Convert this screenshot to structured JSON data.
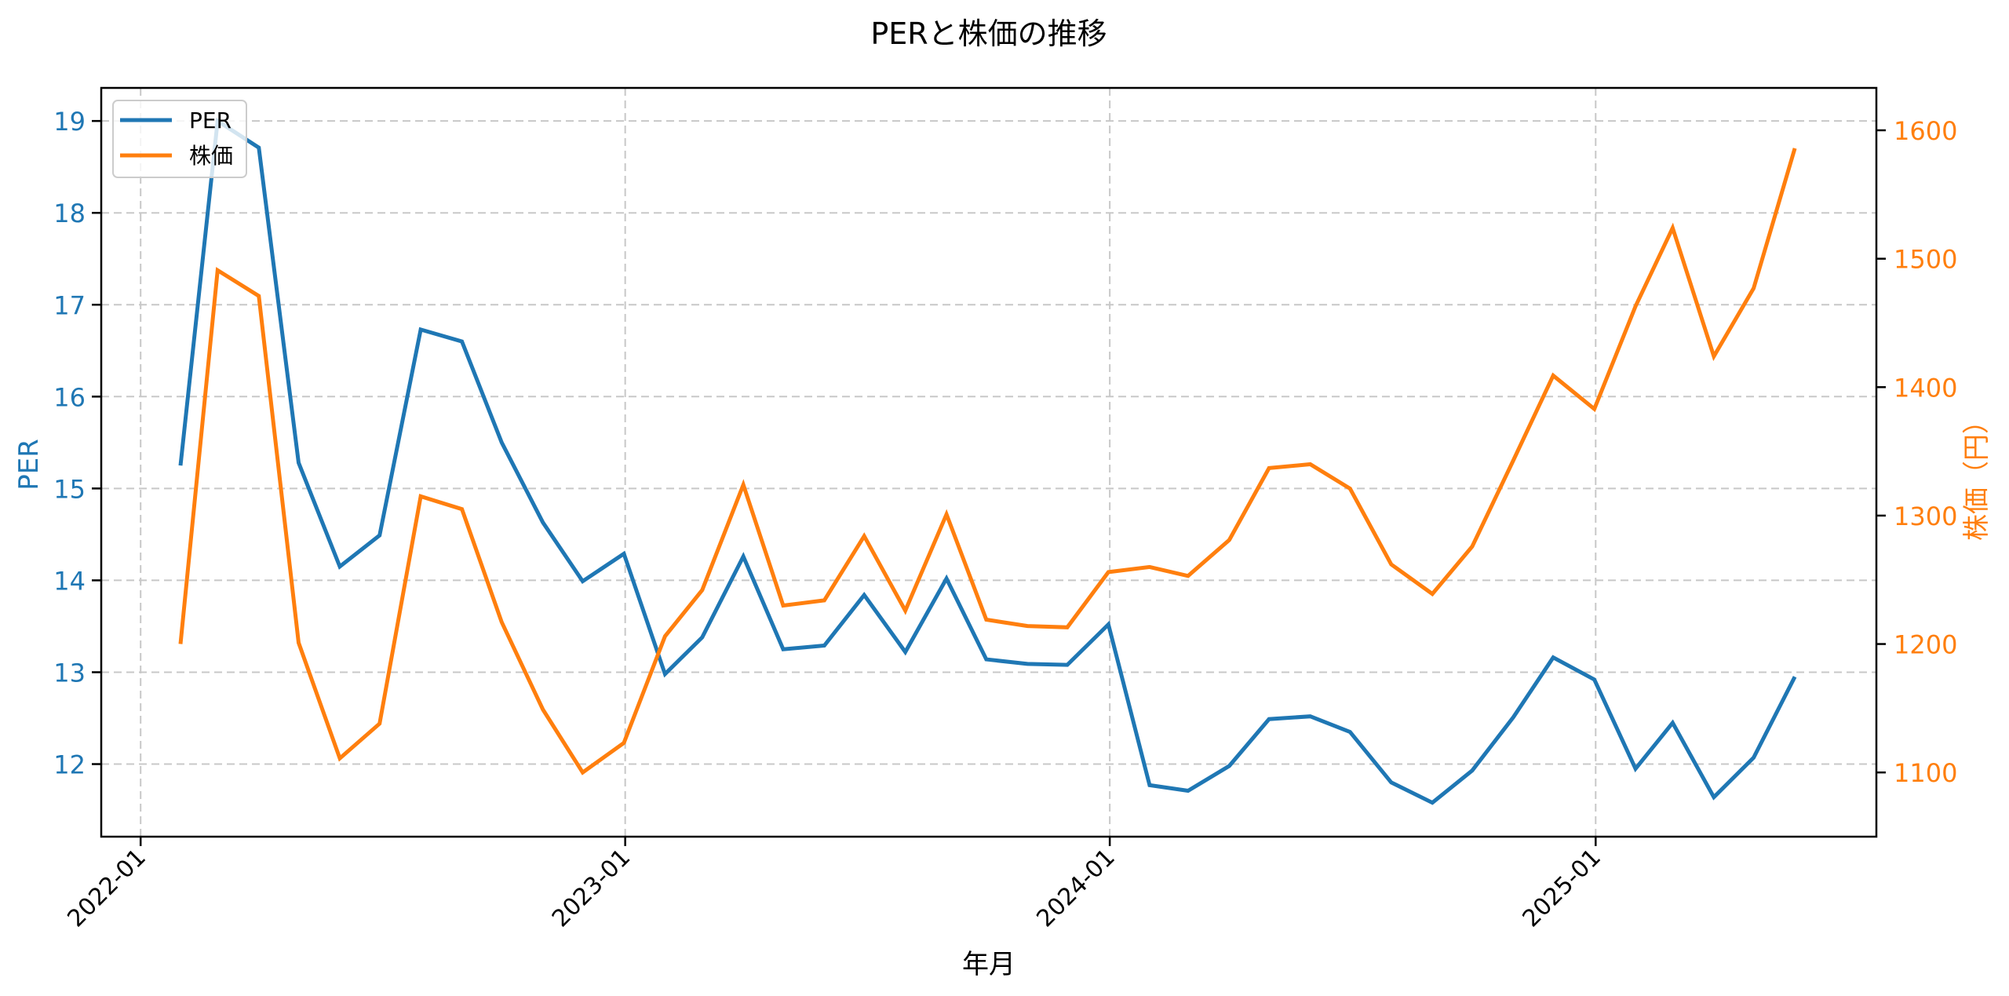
{
  "chart_data": {
    "type": "line",
    "title": "PERと株価の推移",
    "xlabel": "年月",
    "ylabel_left": "PER",
    "ylabel_right": "株価（円）",
    "dual_axis": true,
    "grid": true,
    "legend_position": "upper left",
    "x": [
      "2022-01-31",
      "2022-02-28",
      "2022-03-31",
      "2022-04-30",
      "2022-05-31",
      "2022-06-30",
      "2022-07-31",
      "2022-08-31",
      "2022-09-30",
      "2022-10-31",
      "2022-11-30",
      "2022-12-31",
      "2023-01-31",
      "2023-02-28",
      "2023-03-31",
      "2023-04-30",
      "2023-05-31",
      "2023-06-30",
      "2023-07-31",
      "2023-08-31",
      "2023-09-30",
      "2023-10-31",
      "2023-11-30",
      "2023-12-31",
      "2024-01-31",
      "2024-02-29",
      "2024-03-31",
      "2024-04-30",
      "2024-05-31",
      "2024-06-30",
      "2024-07-31",
      "2024-08-31",
      "2024-09-30",
      "2024-10-31",
      "2024-11-30",
      "2024-12-31",
      "2025-01-31",
      "2025-02-28",
      "2025-03-31",
      "2025-04-30",
      "2025-05-31"
    ],
    "x_ticks": [
      "2022-01",
      "2023-01",
      "2024-01",
      "2025-01"
    ],
    "y_left_ticks": [
      12,
      13,
      14,
      15,
      16,
      17,
      18,
      19
    ],
    "y_left_range": [
      11.21,
      19.36
    ],
    "y_right_ticks": [
      1100,
      1200,
      1300,
      1400,
      1500,
      1600
    ],
    "y_right_range": [
      1050,
      1633
    ],
    "series": [
      {
        "name": "PER",
        "axis": "left",
        "color": "#1f77b4",
        "values": [
          15.25,
          19.0,
          18.71,
          15.28,
          14.15,
          14.49,
          16.73,
          16.6,
          15.5,
          14.63,
          13.99,
          14.29,
          12.98,
          13.38,
          14.26,
          13.25,
          13.29,
          13.84,
          13.22,
          14.02,
          13.14,
          13.09,
          13.08,
          13.52,
          11.77,
          11.71,
          11.98,
          12.49,
          12.52,
          12.35,
          11.8,
          11.58,
          11.93,
          12.51,
          13.16,
          12.92,
          11.95,
          12.45,
          11.64,
          12.07,
          12.95
        ]
      },
      {
        "name": "株価",
        "axis": "right",
        "color": "#ff7f0e",
        "values": [
          1200,
          1491,
          1471,
          1201,
          1111,
          1138,
          1315,
          1305,
          1217,
          1149,
          1100,
          1123,
          1206,
          1242,
          1324,
          1230,
          1234,
          1284,
          1226,
          1301,
          1219,
          1214,
          1213,
          1256,
          1260,
          1253,
          1281,
          1337,
          1340,
          1321,
          1262,
          1239,
          1276,
          1343,
          1409,
          1383,
          1463,
          1524,
          1424,
          1477,
          1586
        ]
      }
    ]
  },
  "colors": {
    "left_axis": "#1f77b4",
    "right_axis": "#ff7f0e",
    "grid": "#c8c8c8",
    "spine": "#000000"
  }
}
